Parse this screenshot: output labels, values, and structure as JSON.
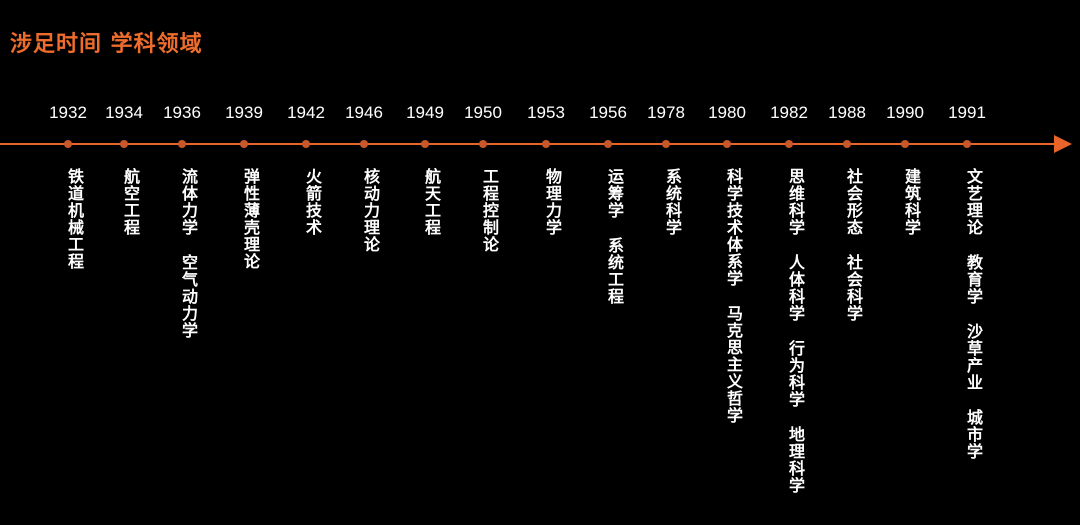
{
  "title": "涉足时间 学科领域",
  "accent_color": "#e8642b",
  "timeline": [
    {
      "year": "1932",
      "fields": [
        "铁道机械工程"
      ]
    },
    {
      "year": "1934",
      "fields": [
        "航空工程"
      ]
    },
    {
      "year": "1936",
      "fields": [
        "流体力学",
        "空气动力学"
      ]
    },
    {
      "year": "1939",
      "fields": [
        "弹性薄壳理论"
      ]
    },
    {
      "year": "1942",
      "fields": [
        "火箭技术"
      ]
    },
    {
      "year": "1946",
      "fields": [
        "核动力理论"
      ]
    },
    {
      "year": "1949",
      "fields": [
        "航天工程"
      ]
    },
    {
      "year": "1950",
      "fields": [
        "工程控制论"
      ]
    },
    {
      "year": "1953",
      "fields": [
        "物理力学"
      ]
    },
    {
      "year": "1956",
      "fields": [
        "运筹学",
        "系统工程"
      ]
    },
    {
      "year": "1978",
      "fields": [
        "系统科学"
      ]
    },
    {
      "year": "1980",
      "fields": [
        "科学技术体系学",
        "马克思主义哲学"
      ]
    },
    {
      "year": "1982",
      "fields": [
        "思维科学",
        "人体科学",
        "行为科学",
        "地理科学"
      ]
    },
    {
      "year": "1988",
      "fields": [
        "社会形态",
        "社会科学"
      ]
    },
    {
      "year": "1990",
      "fields": [
        "建筑科学"
      ]
    },
    {
      "year": "1991",
      "fields": [
        "文艺理论",
        "教育学",
        "沙草产业",
        "城市学"
      ]
    }
  ]
}
